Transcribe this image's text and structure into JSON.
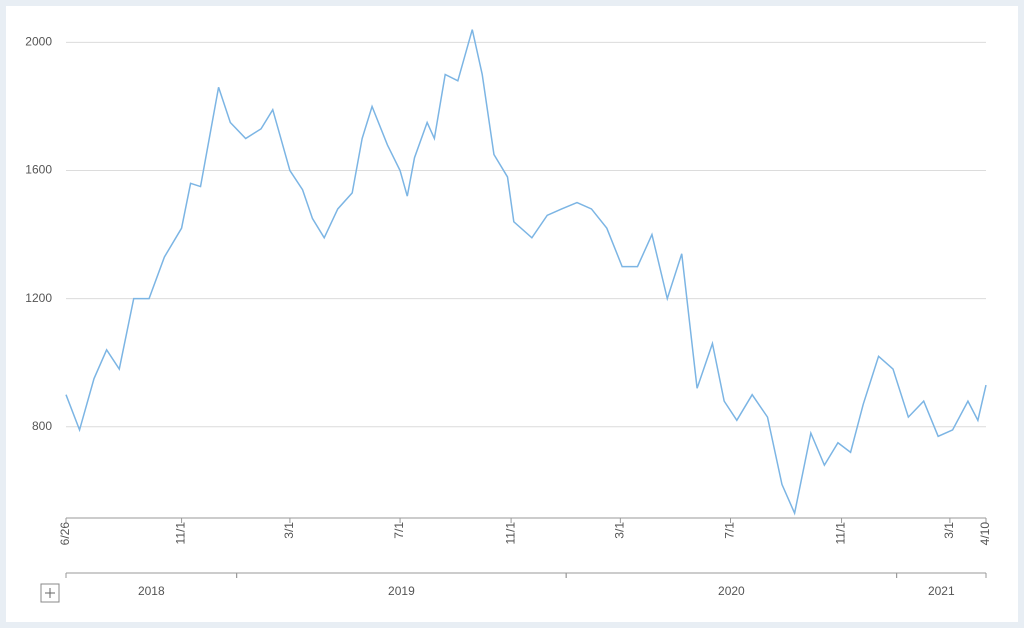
{
  "chart_data": {
    "type": "line",
    "x": [
      "2018-06-26",
      "2018-07-11",
      "2018-07-27",
      "2018-08-10",
      "2018-08-24",
      "2018-09-09",
      "2018-09-26",
      "2018-10-13",
      "2018-11-01",
      "2018-11-11",
      "2018-11-22",
      "2018-12-12",
      "2018-12-25",
      "2019-01-11",
      "2019-01-28",
      "2019-02-10",
      "2019-03-01",
      "2019-03-15",
      "2019-03-26",
      "2019-04-08",
      "2019-04-23",
      "2019-05-09",
      "2019-05-20",
      "2019-05-31",
      "2019-06-17",
      "2019-07-01",
      "2019-07-09",
      "2019-07-17",
      "2019-07-31",
      "2019-08-08",
      "2019-08-20",
      "2019-09-03",
      "2019-09-19",
      "2019-09-30",
      "2019-10-13",
      "2019-10-28",
      "2019-11-04",
      "2019-11-24",
      "2019-12-11",
      "2019-12-27",
      "2020-01-13",
      "2020-01-29",
      "2020-02-15",
      "2020-03-03",
      "2020-03-20",
      "2020-04-05",
      "2020-04-22",
      "2020-05-08",
      "2020-05-25",
      "2020-06-11",
      "2020-06-24",
      "2020-07-08",
      "2020-07-25",
      "2020-08-11",
      "2020-08-27",
      "2020-09-10",
      "2020-09-28",
      "2020-10-13",
      "2020-10-28",
      "2020-11-11",
      "2020-11-25",
      "2020-12-12",
      "2020-12-28",
      "2021-01-14",
      "2021-01-31",
      "2021-02-16",
      "2021-03-04",
      "2021-03-21",
      "2021-04-01",
      "2021-04-10"
    ],
    "series": [
      {
        "color": "#7cb5e4",
        "values": [
          900,
          790,
          950,
          1040,
          980,
          1200,
          1200,
          1330,
          1420,
          1560,
          1550,
          1860,
          1750,
          1700,
          1730,
          1790,
          1600,
          1540,
          1450,
          1390,
          1480,
          1530,
          1700,
          1800,
          1680,
          1600,
          1520,
          1640,
          1750,
          1700,
          1900,
          1880,
          2040,
          1900,
          1650,
          1580,
          1440,
          1390,
          1460,
          1480,
          1500,
          1480,
          1420,
          1300,
          1300,
          1400,
          1200,
          1340,
          920,
          1060,
          880,
          820,
          900,
          830,
          620,
          530,
          780,
          680,
          750,
          720,
          870,
          1020,
          980,
          830,
          880,
          770,
          790,
          880,
          820,
          930
        ]
      }
    ],
    "xlim": [
      "2018-06-26",
      "2021-04-10"
    ],
    "xticks": [
      {
        "value": "2018-06-26",
        "label": "6/26"
      },
      {
        "value": "2018-11-01",
        "label": "11/1"
      },
      {
        "value": "2019-03-01",
        "label": "3/1"
      },
      {
        "value": "2019-07-01",
        "label": "7/1"
      },
      {
        "value": "2019-11-01",
        "label": "11/1"
      },
      {
        "value": "2020-03-01",
        "label": "3/1"
      },
      {
        "value": "2020-07-01",
        "label": "7/1"
      },
      {
        "value": "2020-11-01",
        "label": "11/1"
      },
      {
        "value": "2021-03-01",
        "label": "3/1"
      },
      {
        "value": "2021-04-10",
        "label": "4/10"
      }
    ],
    "periods": [
      {
        "label": "2018",
        "start": "2018-06-26",
        "end": "2019-01-01"
      },
      {
        "label": "2019",
        "start": "2019-01-01",
        "end": "2020-01-01"
      },
      {
        "label": "2020",
        "start": "2020-01-01",
        "end": "2021-01-01"
      },
      {
        "label": "2021",
        "start": "2021-01-01",
        "end": "2021-04-10"
      }
    ],
    "ylim": [
      515,
      2070
    ],
    "yticks": [
      800,
      1200,
      1600,
      2000
    ],
    "grid": true
  }
}
